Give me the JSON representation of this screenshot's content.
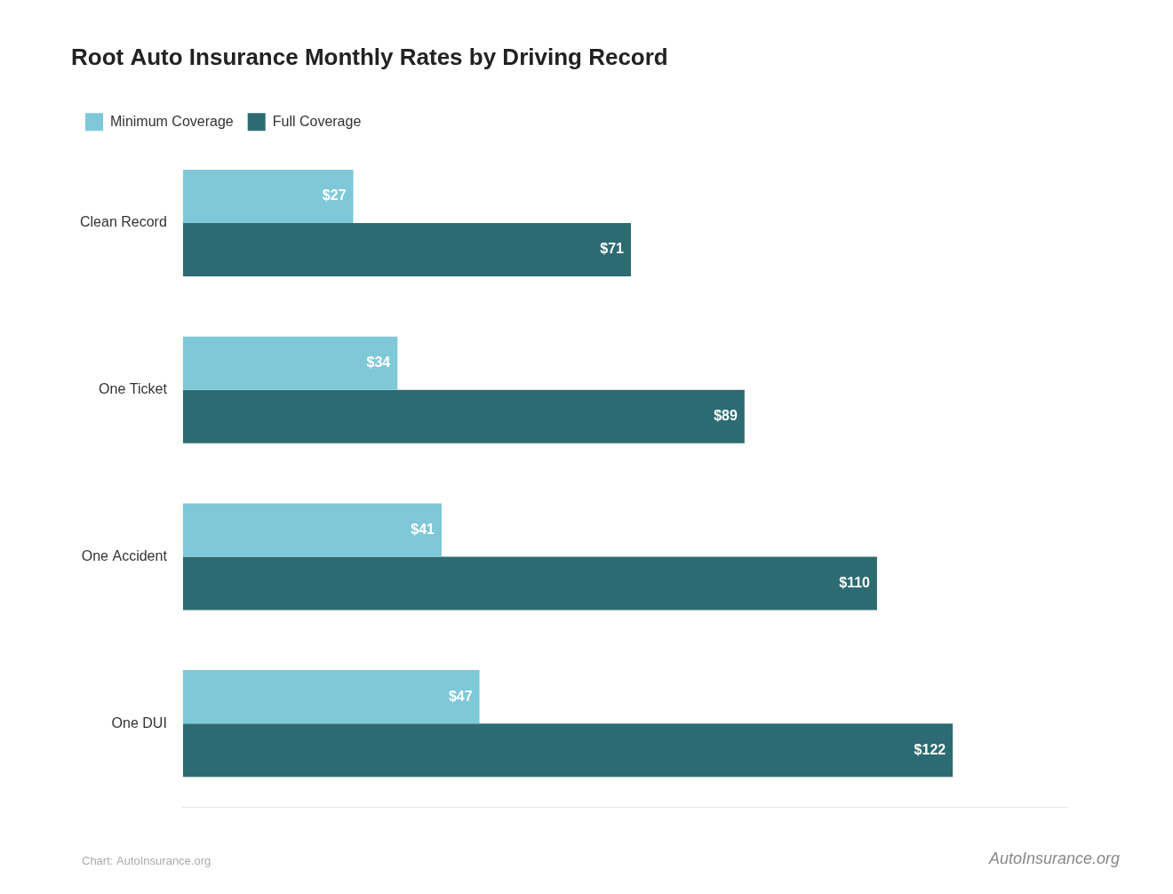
{
  "chart_data": {
    "type": "bar",
    "orientation": "horizontal",
    "title": "Root Auto Insurance Monthly Rates by Driving Record",
    "categories": [
      "Clean Record",
      "One Ticket",
      "One Accident",
      "One DUI"
    ],
    "series": [
      {
        "name": "Minimum Coverage",
        "color": "#7ec8d8",
        "values": [
          27,
          34,
          41,
          47
        ],
        "value_labels": [
          "$27",
          "$34",
          "$41",
          "$47"
        ]
      },
      {
        "name": "Full Coverage",
        "color": "#2d6b72",
        "values": [
          71,
          89,
          110,
          122
        ],
        "value_labels": [
          "$71",
          "$89",
          "$110",
          "$122"
        ]
      }
    ],
    "xlim": [
      0,
      140
    ],
    "grid": false,
    "legend": "top",
    "data_labels": true,
    "tick_labels": "y",
    "annotations": [
      "Chart: AutoInsurance.org",
      "AutoInsurance.org"
    ]
  }
}
